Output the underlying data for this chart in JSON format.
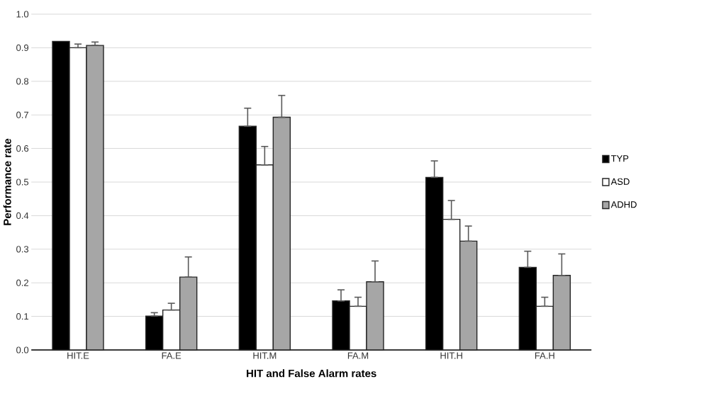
{
  "chart_data": {
    "type": "bar",
    "xlabel": "HIT and False Alarm rates",
    "ylabel": "Performance rate",
    "categories": [
      "HIT.E",
      "FA.E",
      "HIT.M",
      "FA.M",
      "HIT.H",
      "FA.H"
    ],
    "series": [
      {
        "name": "TYP",
        "color": "#000000",
        "values": [
          0.919,
          0.101,
          0.666,
          0.146,
          0.514,
          0.246
        ],
        "errors": [
          null,
          [
            0.101,
            0.111
          ],
          [
            0.666,
            0.72
          ],
          [
            0.146,
            0.179
          ],
          [
            0.514,
            0.563
          ],
          [
            0.246,
            0.294
          ]
        ]
      },
      {
        "name": "ASD",
        "color": "#ffffff",
        "values": [
          0.9,
          0.119,
          0.551,
          0.13,
          0.389,
          0.13
        ],
        "errors": [
          [
            0.9,
            0.911
          ],
          [
            0.119,
            0.139
          ],
          [
            0.551,
            0.606
          ],
          [
            0.13,
            0.157
          ],
          [
            0.389,
            0.445
          ],
          [
            0.13,
            0.157
          ]
        ]
      },
      {
        "name": "ADHD",
        "color": "#a6a6a6",
        "values": [
          0.907,
          0.217,
          0.693,
          0.203,
          0.324,
          0.222
        ],
        "errors": [
          [
            0.907,
            0.917
          ],
          [
            0.217,
            0.277
          ],
          [
            0.693,
            0.758
          ],
          [
            0.203,
            0.265
          ],
          [
            0.324,
            0.369
          ],
          [
            0.222,
            0.286
          ]
        ]
      }
    ],
    "ylim": [
      0,
      1.0
    ],
    "yticks": [
      {
        "value": 0,
        "label": "0.0"
      },
      0.1,
      0.2,
      0.3,
      0.4,
      0.5,
      0.6,
      0.7,
      0.8,
      0.9,
      {
        "value": 1.0,
        "label": "1.0"
      }
    ],
    "grid": "y",
    "legend": "right"
  }
}
